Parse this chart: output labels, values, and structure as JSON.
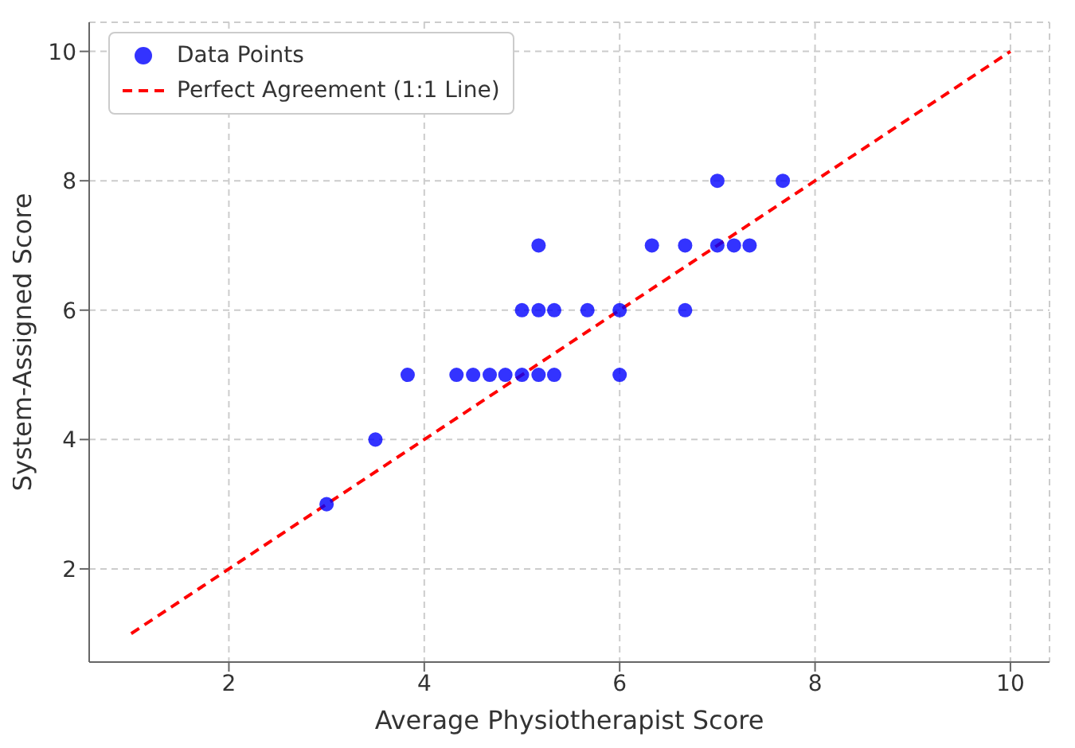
{
  "chart_data": {
    "type": "scatter",
    "xlabel": "Average Physiotherapist Score",
    "ylabel": "System-Assigned Score",
    "xlim": [
      0.57,
      10.4
    ],
    "ylim": [
      0.56,
      10.45
    ],
    "xticks": [
      2,
      4,
      6,
      8,
      10
    ],
    "yticks": [
      2,
      4,
      6,
      8,
      10
    ],
    "grid": true,
    "legend": "top left",
    "marker": "circle",
    "series": [
      {
        "name": "Data Points",
        "color": "#0000ff",
        "x": [
          3,
          3.5,
          3.83,
          4.33,
          4.5,
          4.67,
          4.83,
          5,
          5.17,
          5.33,
          6,
          5,
          5.17,
          5.33,
          5.67,
          6,
          6.67,
          5.17,
          6.33,
          6.67,
          7,
          7.17,
          7.33,
          7,
          7.67
        ],
        "values": [
          3,
          4,
          5,
          5,
          5,
          5,
          5,
          5,
          5,
          5,
          5,
          6,
          6,
          6,
          6,
          6,
          6,
          7,
          7,
          7,
          7,
          7,
          7,
          8,
          8
        ]
      },
      {
        "name": "Perfect Agreement (1:1 Line)",
        "type": "line",
        "color": "#ff0000",
        "line_style": "dashed",
        "marker": "none",
        "x": [
          1,
          10
        ],
        "values": [
          1,
          10
        ]
      }
    ]
  }
}
